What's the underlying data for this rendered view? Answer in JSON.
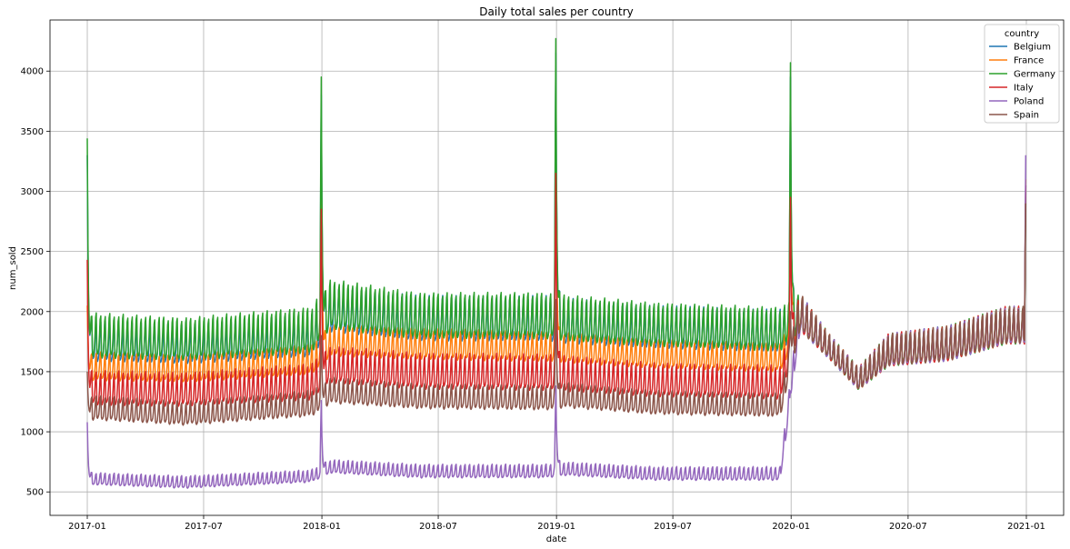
{
  "chart_data": {
    "type": "line",
    "title": "Daily total sales per country",
    "xlabel": "date",
    "ylabel": "num_sold",
    "x_range": [
      "2016-11-04",
      "2021-02-28"
    ],
    "ylim": [
      305,
      4425
    ],
    "x_ticks": [
      "2017-01",
      "2017-07",
      "2018-01",
      "2018-07",
      "2019-01",
      "2019-07",
      "2020-01",
      "2020-07",
      "2021-01"
    ],
    "y_ticks": [
      500,
      1000,
      1500,
      2000,
      2500,
      3000,
      3500,
      4000
    ],
    "grid": true,
    "legend": {
      "title": "country",
      "placement": "top-right"
    },
    "series": [
      {
        "name": "Belgium",
        "color": "#1f77b4",
        "levels": [
          {
            "date": "2017-01-01",
            "base": 1720,
            "amp": 330
          },
          {
            "date": "2017-06-01",
            "base": 1690,
            "amp": 310
          },
          {
            "date": "2017-12-15",
            "base": 1760,
            "amp": 340
          },
          {
            "date": "2018-01-15",
            "base": 1980,
            "amp": 370
          },
          {
            "date": "2018-06-01",
            "base": 1900,
            "amp": 360
          },
          {
            "date": "2018-12-15",
            "base": 1900,
            "amp": 360
          },
          {
            "date": "2019-01-15",
            "base": 1880,
            "amp": 360
          },
          {
            "date": "2019-06-01",
            "base": 1830,
            "amp": 340
          },
          {
            "date": "2019-12-15",
            "base": 1800,
            "amp": 340
          },
          {
            "date": "2020-01-15",
            "base": 1960,
            "amp": 300
          },
          {
            "date": "2020-03-01",
            "base": 1680,
            "amp": 200
          },
          {
            "date": "2020-04-15",
            "base": 1420,
            "amp": 180
          },
          {
            "date": "2020-06-01",
            "base": 1650,
            "amp": 260
          },
          {
            "date": "2020-09-01",
            "base": 1700,
            "amp": 280
          },
          {
            "date": "2020-12-01",
            "base": 1850,
            "amp": 300
          }
        ],
        "spikes": [
          {
            "date": "2017-01-01",
            "value": 3300
          },
          {
            "date": "2017-12-31",
            "value": 3800
          },
          {
            "date": "2018-12-31",
            "value": 4150
          },
          {
            "date": "2019-12-31",
            "value": 3950
          },
          {
            "date": "2020-12-31",
            "value": 3050
          }
        ]
      },
      {
        "name": "France",
        "color": "#ff7f0e",
        "levels": [
          {
            "date": "2017-01-01",
            "base": 1520,
            "amp": 230
          },
          {
            "date": "2017-06-01",
            "base": 1500,
            "amp": 220
          },
          {
            "date": "2017-12-15",
            "base": 1570,
            "amp": 240
          },
          {
            "date": "2018-01-15",
            "base": 1730,
            "amp": 250
          },
          {
            "date": "2018-06-01",
            "base": 1700,
            "amp": 250
          },
          {
            "date": "2018-12-15",
            "base": 1680,
            "amp": 240
          },
          {
            "date": "2019-01-15",
            "base": 1670,
            "amp": 240
          },
          {
            "date": "2019-06-01",
            "base": 1620,
            "amp": 230
          },
          {
            "date": "2019-12-15",
            "base": 1590,
            "amp": 230
          },
          {
            "date": "2020-01-15",
            "base": 1960,
            "amp": 300
          },
          {
            "date": "2020-03-01",
            "base": 1680,
            "amp": 200
          },
          {
            "date": "2020-04-15",
            "base": 1420,
            "amp": 180
          },
          {
            "date": "2020-06-01",
            "base": 1650,
            "amp": 260
          },
          {
            "date": "2020-09-01",
            "base": 1700,
            "amp": 280
          },
          {
            "date": "2020-12-01",
            "base": 1850,
            "amp": 300
          }
        ],
        "spikes": [
          {
            "date": "2017-01-01",
            "value": 2050
          },
          {
            "date": "2017-12-31",
            "value": 3300
          },
          {
            "date": "2018-12-31",
            "value": 3500
          },
          {
            "date": "2019-12-31",
            "value": 3200
          },
          {
            "date": "2020-12-31",
            "value": 3100
          }
        ]
      },
      {
        "name": "Germany",
        "color": "#2ca02c",
        "levels": [
          {
            "date": "2017-01-01",
            "base": 1760,
            "amp": 360
          },
          {
            "date": "2017-06-01",
            "base": 1730,
            "amp": 340
          },
          {
            "date": "2017-12-15",
            "base": 1800,
            "amp": 370
          },
          {
            "date": "2018-01-15",
            "base": 2010,
            "amp": 400
          },
          {
            "date": "2018-06-01",
            "base": 1920,
            "amp": 370
          },
          {
            "date": "2018-12-15",
            "base": 1920,
            "amp": 370
          },
          {
            "date": "2019-01-15",
            "base": 1900,
            "amp": 370
          },
          {
            "date": "2019-06-01",
            "base": 1850,
            "amp": 350
          },
          {
            "date": "2019-12-15",
            "base": 1810,
            "amp": 350
          },
          {
            "date": "2020-01-15",
            "base": 1960,
            "amp": 300
          },
          {
            "date": "2020-03-01",
            "base": 1680,
            "amp": 200
          },
          {
            "date": "2020-04-15",
            "base": 1420,
            "amp": 180
          },
          {
            "date": "2020-06-01",
            "base": 1650,
            "amp": 260
          },
          {
            "date": "2020-09-01",
            "base": 1700,
            "amp": 280
          },
          {
            "date": "2020-12-01",
            "base": 1850,
            "amp": 300
          }
        ],
        "spikes": [
          {
            "date": "2017-01-01",
            "value": 3440
          },
          {
            "date": "2017-12-31",
            "value": 3950
          },
          {
            "date": "2018-12-31",
            "value": 4270
          },
          {
            "date": "2019-12-31",
            "value": 4070
          },
          {
            "date": "2020-12-31",
            "value": 3000
          }
        ]
      },
      {
        "name": "Italy",
        "color": "#d62728",
        "levels": [
          {
            "date": "2017-01-01",
            "base": 1330,
            "amp": 280
          },
          {
            "date": "2017-06-01",
            "base": 1320,
            "amp": 270
          },
          {
            "date": "2017-12-15",
            "base": 1380,
            "amp": 290
          },
          {
            "date": "2018-01-15",
            "base": 1520,
            "amp": 300
          },
          {
            "date": "2018-06-01",
            "base": 1470,
            "amp": 290
          },
          {
            "date": "2018-12-15",
            "base": 1460,
            "amp": 290
          },
          {
            "date": "2019-01-15",
            "base": 1450,
            "amp": 290
          },
          {
            "date": "2019-06-01",
            "base": 1400,
            "amp": 270
          },
          {
            "date": "2019-12-15",
            "base": 1380,
            "amp": 270
          },
          {
            "date": "2020-01-15",
            "base": 1960,
            "amp": 300
          },
          {
            "date": "2020-03-01",
            "base": 1680,
            "amp": 200
          },
          {
            "date": "2020-04-15",
            "base": 1420,
            "amp": 180
          },
          {
            "date": "2020-06-01",
            "base": 1650,
            "amp": 260
          },
          {
            "date": "2020-09-01",
            "base": 1700,
            "amp": 280
          },
          {
            "date": "2020-12-01",
            "base": 1850,
            "amp": 300
          }
        ],
        "spikes": [
          {
            "date": "2017-01-01",
            "value": 2430
          },
          {
            "date": "2017-12-31",
            "value": 2850
          },
          {
            "date": "2018-12-31",
            "value": 3150
          },
          {
            "date": "2019-12-31",
            "value": 2950
          },
          {
            "date": "2020-12-31",
            "value": 3050
          }
        ]
      },
      {
        "name": "Poland",
        "color": "#9467bd",
        "levels": [
          {
            "date": "2017-01-01",
            "base": 600,
            "amp": 100
          },
          {
            "date": "2017-06-01",
            "base": 570,
            "amp": 100
          },
          {
            "date": "2017-12-15",
            "base": 620,
            "amp": 100
          },
          {
            "date": "2018-01-15",
            "base": 700,
            "amp": 110
          },
          {
            "date": "2018-06-01",
            "base": 660,
            "amp": 110
          },
          {
            "date": "2018-12-15",
            "base": 660,
            "amp": 110
          },
          {
            "date": "2019-01-15",
            "base": 680,
            "amp": 110
          },
          {
            "date": "2019-06-01",
            "base": 640,
            "amp": 110
          },
          {
            "date": "2019-12-15",
            "base": 640,
            "amp": 110
          },
          {
            "date": "2020-01-15",
            "base": 1960,
            "amp": 300
          },
          {
            "date": "2020-03-01",
            "base": 1680,
            "amp": 200
          },
          {
            "date": "2020-04-15",
            "base": 1420,
            "amp": 180
          },
          {
            "date": "2020-06-01",
            "base": 1650,
            "amp": 260
          },
          {
            "date": "2020-09-01",
            "base": 1700,
            "amp": 280
          },
          {
            "date": "2020-12-01",
            "base": 1850,
            "amp": 300
          }
        ],
        "spikes": [
          {
            "date": "2017-01-01",
            "value": 1080
          },
          {
            "date": "2017-12-31",
            "value": 1260
          },
          {
            "date": "2018-12-31",
            "value": 1380
          },
          {
            "date": "2019-12-31",
            "value": 1340
          },
          {
            "date": "2020-12-31",
            "value": 3300
          }
        ]
      },
      {
        "name": "Spain",
        "color": "#8c564b",
        "levels": [
          {
            "date": "2017-01-01",
            "base": 1180,
            "amp": 200
          },
          {
            "date": "2017-06-01",
            "base": 1130,
            "amp": 190
          },
          {
            "date": "2017-12-15",
            "base": 1210,
            "amp": 210
          },
          {
            "date": "2018-01-15",
            "base": 1320,
            "amp": 210
          },
          {
            "date": "2018-06-01",
            "base": 1270,
            "amp": 200
          },
          {
            "date": "2018-12-15",
            "base": 1260,
            "amp": 200
          },
          {
            "date": "2019-01-15",
            "base": 1280,
            "amp": 200
          },
          {
            "date": "2019-06-01",
            "base": 1220,
            "amp": 190
          },
          {
            "date": "2019-12-15",
            "base": 1200,
            "amp": 190
          },
          {
            "date": "2020-01-15",
            "base": 1960,
            "amp": 300
          },
          {
            "date": "2020-03-01",
            "base": 1680,
            "amp": 200
          },
          {
            "date": "2020-04-15",
            "base": 1420,
            "amp": 180
          },
          {
            "date": "2020-06-01",
            "base": 1650,
            "amp": 260
          },
          {
            "date": "2020-09-01",
            "base": 1700,
            "amp": 280
          },
          {
            "date": "2020-12-01",
            "base": 1850,
            "amp": 300
          }
        ],
        "spikes": [
          {
            "date": "2017-01-01",
            "value": 1500
          },
          {
            "date": "2017-12-31",
            "value": 1800
          },
          {
            "date": "2018-12-31",
            "value": 2100
          },
          {
            "date": "2019-12-31",
            "value": 2000
          },
          {
            "date": "2020-12-31",
            "value": 2900
          }
        ]
      }
    ]
  }
}
